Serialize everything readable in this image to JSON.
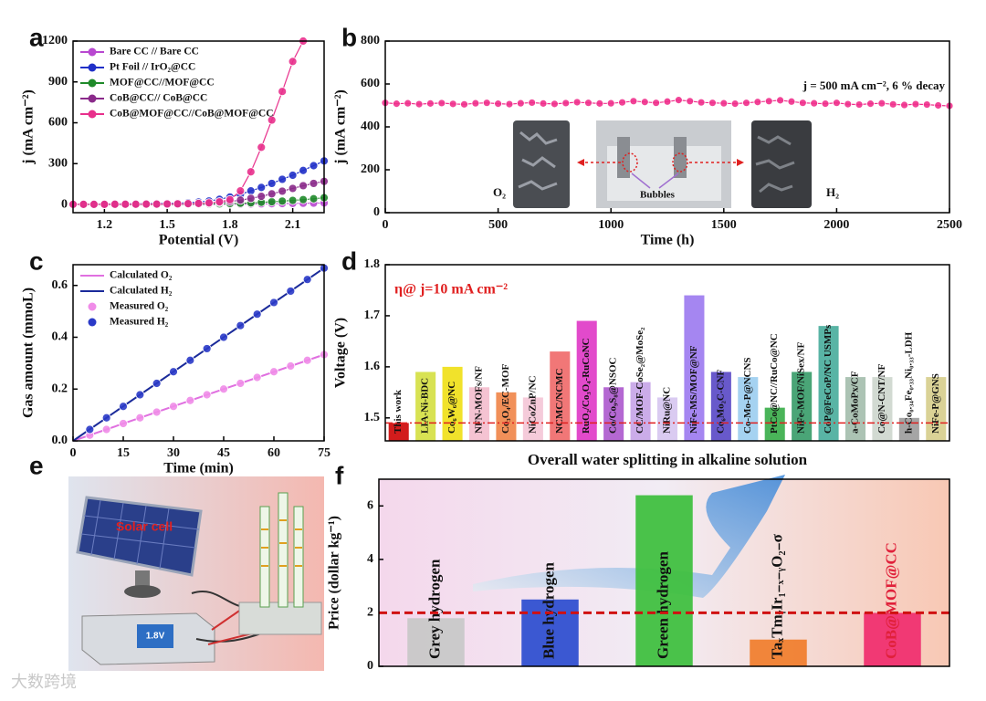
{
  "chart_data": [
    {
      "panel": "a",
      "type": "line",
      "xlabel": "Potential (V)",
      "ylabel": "j (mA cm⁻²)",
      "xlim": [
        1.05,
        2.25
      ],
      "xticks": [
        1.2,
        1.5,
        1.8,
        2.1
      ],
      "ylim": [
        -60,
        1200
      ],
      "yticks": [
        0,
        300,
        600,
        900,
        1200
      ],
      "legend": "upper left",
      "x": [
        1.05,
        1.1,
        1.15,
        1.2,
        1.25,
        1.3,
        1.35,
        1.4,
        1.45,
        1.5,
        1.55,
        1.6,
        1.65,
        1.7,
        1.75,
        1.8,
        1.85,
        1.9,
        1.95,
        2.0,
        2.05,
        2.1,
        2.15,
        2.2,
        2.25
      ],
      "series": [
        {
          "name": "Bare CC // Bare CC",
          "color": "#b848d0",
          "style": "line+markers",
          "values": [
            0,
            0,
            0,
            0,
            0,
            0,
            0,
            0,
            0,
            0,
            0,
            0,
            0,
            0,
            1,
            2,
            3,
            4,
            5,
            6,
            7,
            8,
            9,
            10,
            11
          ]
        },
        {
          "name": "Pt Foil // IrO₂@CC",
          "color": "#2030c8",
          "style": "line+markers",
          "values": [
            2,
            3,
            3,
            4,
            4,
            5,
            5,
            6,
            7,
            8,
            10,
            13,
            18,
            26,
            38,
            55,
            75,
            100,
            125,
            155,
            185,
            215,
            250,
            285,
            320
          ]
        },
        {
          "name": "MOF@CC//MOF@CC",
          "color": "#1f8a2a",
          "style": "line+markers",
          "values": [
            0,
            0,
            0,
            0,
            0,
            0,
            0,
            0,
            0,
            1,
            1,
            2,
            3,
            4,
            5,
            7,
            9,
            12,
            16,
            20,
            25,
            30,
            36,
            42,
            50
          ]
        },
        {
          "name": "CoB@CC// CoB@CC",
          "color": "#8a2a8a",
          "style": "line+markers",
          "values": [
            1,
            1,
            1,
            1,
            1,
            2,
            2,
            2,
            3,
            3,
            4,
            5,
            7,
            10,
            15,
            22,
            32,
            45,
            60,
            78,
            98,
            118,
            138,
            155,
            170
          ]
        },
        {
          "name": "CoB@MOF@CC//CoB@MOF@CC",
          "color": "#e8308c",
          "style": "line+markers",
          "values": [
            1,
            1,
            1,
            1,
            2,
            2,
            2,
            3,
            3,
            4,
            5,
            6,
            8,
            12,
            20,
            35,
            100,
            240,
            420,
            620,
            830,
            1050,
            1200,
            null,
            null
          ]
        }
      ]
    },
    {
      "panel": "b",
      "type": "line",
      "xlabel": "Time (h)",
      "ylabel": "j (mA cm⁻²)",
      "xlim": [
        0,
        2500
      ],
      "xticks": [
        0,
        500,
        1000,
        1500,
        2000,
        2500
      ],
      "ylim": [
        0,
        800
      ],
      "yticks": [
        0,
        200,
        400,
        600,
        800
      ],
      "annotations": [
        "j = 500 mA cm⁻², 6 % decay",
        "O₂",
        "H₂",
        "Bubbles"
      ],
      "x": [
        0,
        50,
        100,
        150,
        200,
        250,
        300,
        350,
        400,
        450,
        500,
        550,
        600,
        650,
        700,
        750,
        800,
        850,
        900,
        950,
        1000,
        1050,
        1100,
        1150,
        1200,
        1250,
        1300,
        1350,
        1400,
        1450,
        1500,
        1550,
        1600,
        1650,
        1700,
        1750,
        1800,
        1850,
        1900,
        1950,
        2000,
        2050,
        2100,
        2150,
        2200,
        2250,
        2300,
        2350,
        2400,
        2450,
        2500
      ],
      "series": [
        {
          "name": null,
          "color": "#f0308c",
          "style": "line+markers",
          "values": [
            512,
            508,
            510,
            506,
            509,
            511,
            507,
            505,
            510,
            512,
            508,
            506,
            510,
            513,
            509,
            507,
            511,
            515,
            512,
            509,
            510,
            514,
            520,
            516,
            512,
            518,
            525,
            520,
            514,
            512,
            510,
            508,
            512,
            516,
            520,
            524,
            518,
            512,
            510,
            508,
            512,
            506,
            504,
            508,
            510,
            505,
            502,
            506,
            504,
            500,
            498
          ]
        }
      ]
    },
    {
      "panel": "c",
      "type": "line",
      "xlabel": "Time (min)",
      "ylabel": "Gas amount (mmoL)",
      "xlim": [
        0,
        75
      ],
      "xticks": [
        0,
        15,
        30,
        45,
        60,
        75
      ],
      "ylim": [
        0,
        0.68
      ],
      "yticks": [
        {
          "value": 0,
          "label": "0.0"
        },
        0.2,
        0.4,
        0.6
      ],
      "legend": "upper left",
      "series": [
        {
          "name": "Calculated O₂",
          "color": "#e070e0",
          "style": "line",
          "x": [
            0,
            75
          ],
          "values": [
            0,
            0.333
          ]
        },
        {
          "name": "Calculated H₂",
          "color": "#1a2a9a",
          "style": "line",
          "x": [
            0,
            75
          ],
          "values": [
            0,
            0.667
          ]
        },
        {
          "name": "Measured O₂",
          "color": "#f08ce8",
          "style": "markers",
          "x": [
            5,
            10,
            15,
            20,
            25,
            30,
            35,
            40,
            45,
            50,
            55,
            60,
            65,
            70,
            75
          ],
          "values": [
            0.022,
            0.044,
            0.067,
            0.089,
            0.111,
            0.133,
            0.156,
            0.178,
            0.2,
            0.222,
            0.245,
            0.267,
            0.289,
            0.311,
            0.333
          ]
        },
        {
          "name": "Measured H₂",
          "color": "#2a3ac8",
          "style": "markers",
          "x": [
            5,
            10,
            15,
            20,
            25,
            30,
            35,
            40,
            45,
            50,
            55,
            60,
            65,
            70,
            75
          ],
          "values": [
            0.044,
            0.089,
            0.133,
            0.178,
            0.222,
            0.267,
            0.311,
            0.356,
            0.4,
            0.445,
            0.489,
            0.534,
            0.578,
            0.623,
            0.667
          ]
        }
      ]
    },
    {
      "panel": "d",
      "type": "bar",
      "title": "Overall water splitting in alkaline solution",
      "ylabel": "Voltage (V)",
      "annotations": [
        "η@ j=10 mA cm⁻²"
      ],
      "ylim": [
        1.455,
        1.8
      ],
      "yticks": [
        1.5,
        1.6,
        1.7,
        1.8
      ],
      "reference_line": {
        "value": 1.49,
        "color": "#e02020",
        "style": "dashdot"
      },
      "categories": [
        "This work",
        "LIA-Ni-BDC",
        "Co₆W₆@NC",
        "NFN-MOFs/NF",
        "Co₃O₄/EC-MOF",
        "NiCoZnP/NC",
        "NCMC/NCMC",
        "RuO₂/Co₃O₄-RuCoNC",
        "Co/Co₉S₈@NSOC",
        "CC/MOF-CoSe₂@MoSe₂",
        "NiRu@NC",
        "NiFe-MS/MOF@NF",
        "Co₆Mo₂C-CNF",
        "Co-Mo-P@NCNS",
        "PtCo@NC//RuCo@NC",
        "NiFe-MOF/NiSex/NF",
        "CoP@FeCoP/NC USMPs",
        "a-CoMoPx/CF",
        "Co@N-CNT/NF",
        "h-Co₀.₃₄Fe₀.₃₃Ni₀.₃₃-LDH",
        "NiFe-P@GNS"
      ],
      "values": [
        1.49,
        1.59,
        1.6,
        1.56,
        1.55,
        1.54,
        1.63,
        1.69,
        1.56,
        1.57,
        1.54,
        1.74,
        1.59,
        1.58,
        1.52,
        1.59,
        1.68,
        1.58,
        1.58,
        1.5,
        1.58
      ],
      "colors": [
        "#d01010",
        "#d6e04a",
        "#f0e020",
        "#f4c0d0",
        "#f08a50",
        "#f4c8d8",
        "#f07070",
        "#e040c8",
        "#b060d0",
        "#c8a8e8",
        "#d8c8f0",
        "#a080f0",
        "#6050c8",
        "#a0d0f0",
        "#40b050",
        "#40a070",
        "#50b0a0",
        "#a8c0b0",
        "#d0d8d0",
        "#a0a0a0",
        "#d8d090"
      ]
    },
    {
      "panel": "f",
      "type": "bar",
      "ylabel": "Price (dollar kg⁻¹)",
      "ylim": [
        0,
        7
      ],
      "yticks": [
        0,
        2,
        4,
        6
      ],
      "reference_line": {
        "value": 2.0,
        "color": "#d01010",
        "style": "dashed"
      },
      "categories": [
        "Grey hydrogen",
        "Blue hydrogen",
        "Green hydrogen",
        "TaₓTmᵧIr₁₋ₓ₋ᵧO₂₋σ",
        "CoB@MOF@CC"
      ],
      "values": [
        1.8,
        2.5,
        6.4,
        1.0,
        2.0
      ],
      "colors": [
        "#c8c8c8",
        "#3050d0",
        "#40c040",
        "#f08030",
        "#f03070"
      ],
      "label_colors": [
        "#111111",
        "#111111",
        "#111111",
        "#111111",
        "#e0203a"
      ]
    }
  ],
  "schematic": {
    "panel": "e",
    "texts": [
      "Solar cell",
      "1.8V"
    ]
  },
  "watermark": "大数跨境"
}
